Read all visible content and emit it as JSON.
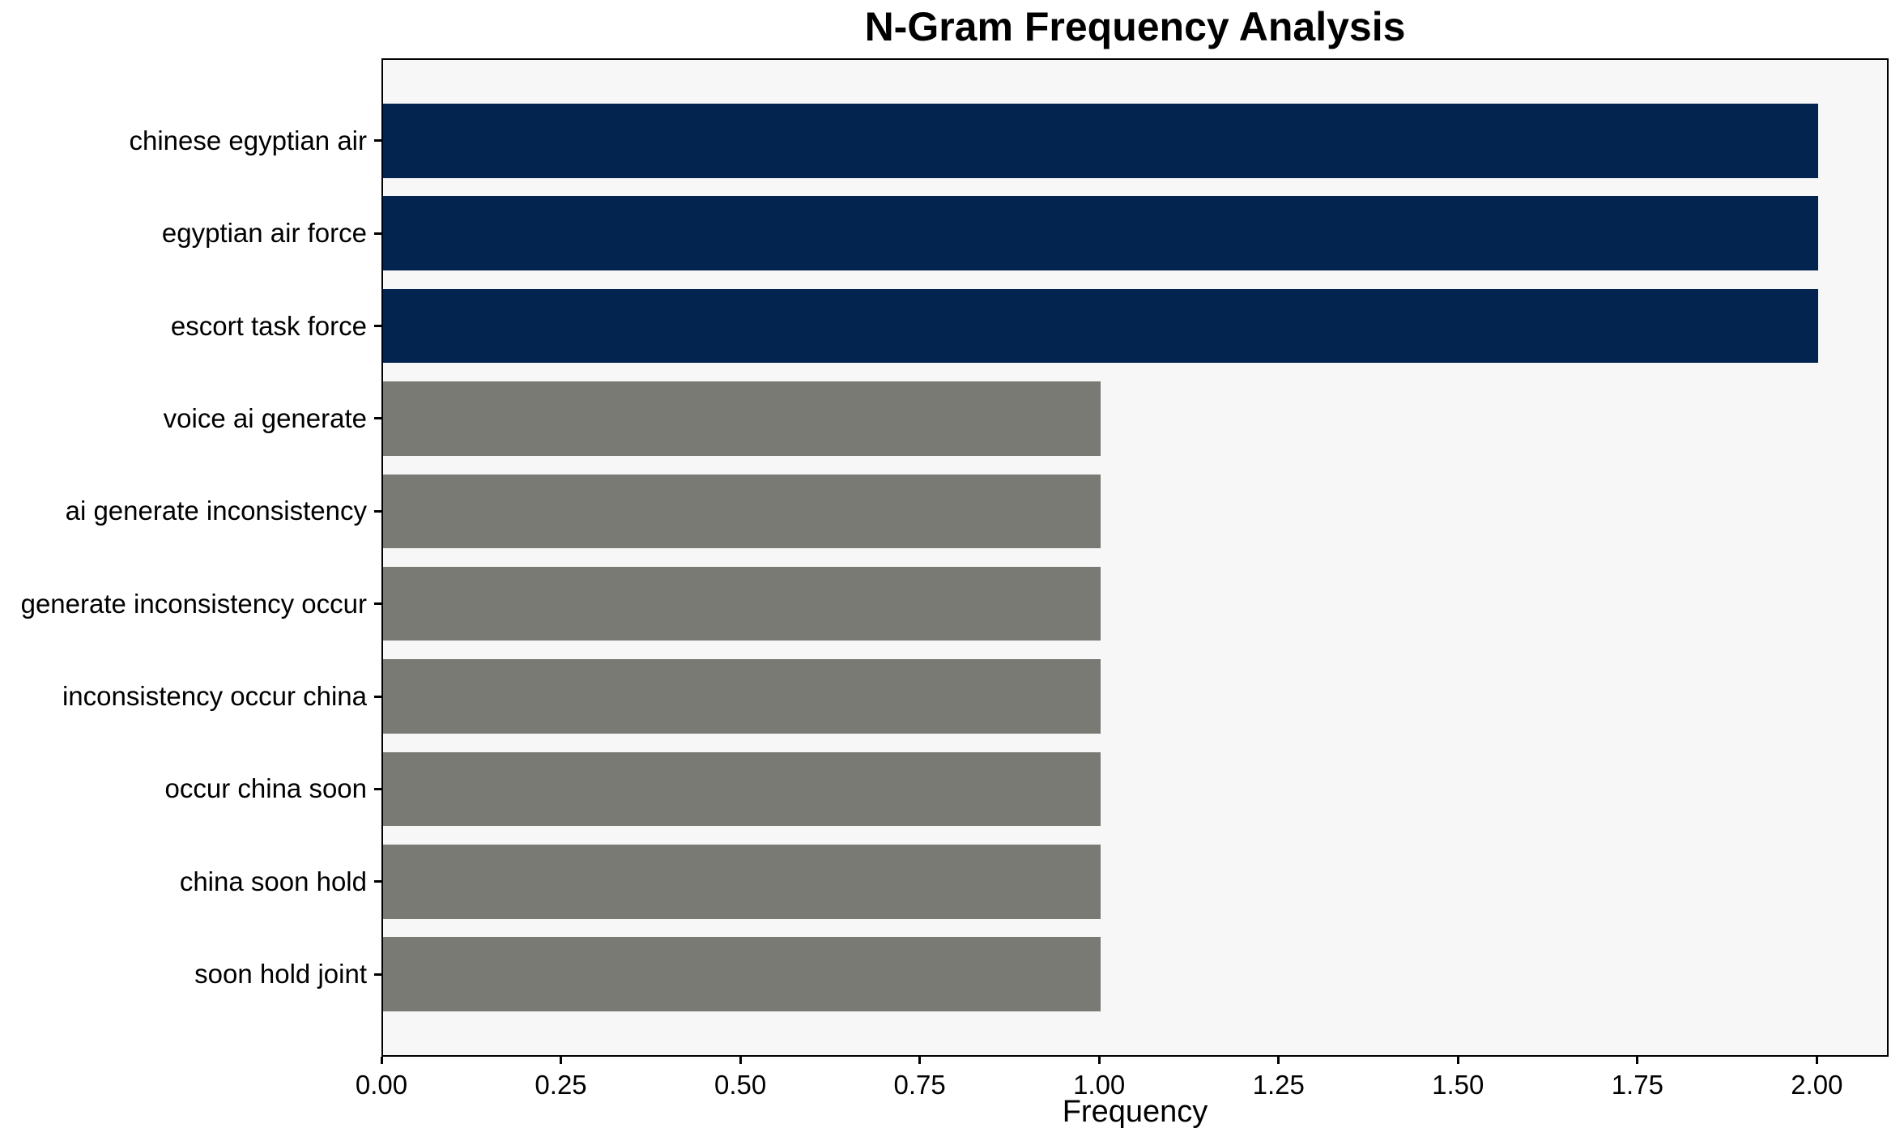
{
  "chart_data": {
    "type": "bar",
    "orientation": "horizontal",
    "title": "N-Gram Frequency Analysis",
    "xlabel": "Frequency",
    "ylabel": "",
    "categories": [
      "chinese egyptian air",
      "egyptian air force",
      "escort task force",
      "voice ai generate",
      "ai generate inconsistency",
      "generate inconsistency occur",
      "inconsistency occur china",
      "occur china soon",
      "china soon hold",
      "soon hold joint"
    ],
    "values": [
      2,
      2,
      2,
      1,
      1,
      1,
      1,
      1,
      1,
      1
    ],
    "bar_color_roles": [
      "highlight",
      "highlight",
      "highlight",
      "regular",
      "regular",
      "regular",
      "regular",
      "regular",
      "regular",
      "regular"
    ],
    "xlim": [
      0,
      2.1
    ],
    "xticks": [
      0,
      0.25,
      0.5,
      0.75,
      1.0,
      1.25,
      1.5,
      1.75,
      2.0
    ],
    "xtick_labels": [
      "0.00",
      "0.25",
      "0.50",
      "0.75",
      "1.00",
      "1.25",
      "1.50",
      "1.75",
      "2.00"
    ],
    "grid": false,
    "legend": null,
    "colors": {
      "highlight_bar": "#02244e",
      "regular_bar": "#7a7a75",
      "plot_background": "#f7f7f7",
      "figure_background": "#ffffff",
      "spine": "#000000",
      "text": "#000000"
    }
  }
}
